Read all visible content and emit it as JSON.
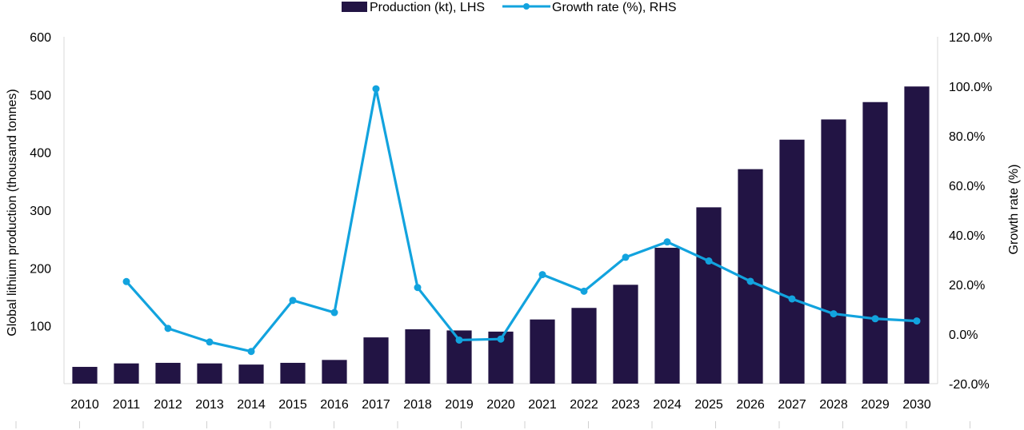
{
  "chart_data": {
    "type": "bar+line",
    "categories": [
      "2010",
      "2011",
      "2012",
      "2013",
      "2014",
      "2015",
      "2016",
      "2017",
      "2018",
      "2019",
      "2020",
      "2021",
      "2022",
      "2023",
      "2024",
      "2025",
      "2026",
      "2027",
      "2028",
      "2029",
      "2030"
    ],
    "series": [
      {
        "name": "Production (kt), LHS",
        "type": "bar",
        "axis": "left",
        "color": "#221444",
        "values": [
          29,
          35,
          36,
          35,
          33,
          36,
          41,
          80,
          94,
          92,
          90,
          111,
          131,
          171,
          235,
          305,
          371,
          422,
          457,
          487,
          514
        ]
      },
      {
        "name": "Growth rate (%), RHS",
        "type": "line",
        "axis": "right",
        "color": "#12A3DE",
        "values": [
          null,
          21.2,
          2.3,
          -3.2,
          -7.0,
          13.6,
          8.7,
          99.0,
          18.8,
          -2.4,
          -2.0,
          24.0,
          17.3,
          31.0,
          37.2,
          29.5,
          21.3,
          14.2,
          8.2,
          6.2,
          5.3
        ]
      }
    ],
    "y_left": {
      "label": "Global lithium production (thousand tonnes)",
      "ylim": [
        0,
        600
      ],
      "ticks": [
        "100",
        "200",
        "300",
        "400",
        "500",
        "600"
      ],
      "tick_values": [
        100,
        200,
        300,
        400,
        500,
        600
      ]
    },
    "y_right": {
      "label": "Growth rate (%)",
      "ylim": [
        -20,
        120
      ],
      "ticks": [
        "-20.0%",
        "0.0%",
        "20.0%",
        "40.0%",
        "60.0%",
        "80.0%",
        "100.0%",
        "120.0%"
      ],
      "tick_values": [
        -20,
        0,
        20,
        40,
        60,
        80,
        100,
        120
      ]
    },
    "xlabel": "",
    "legend_position": "top-center",
    "grid": false
  }
}
